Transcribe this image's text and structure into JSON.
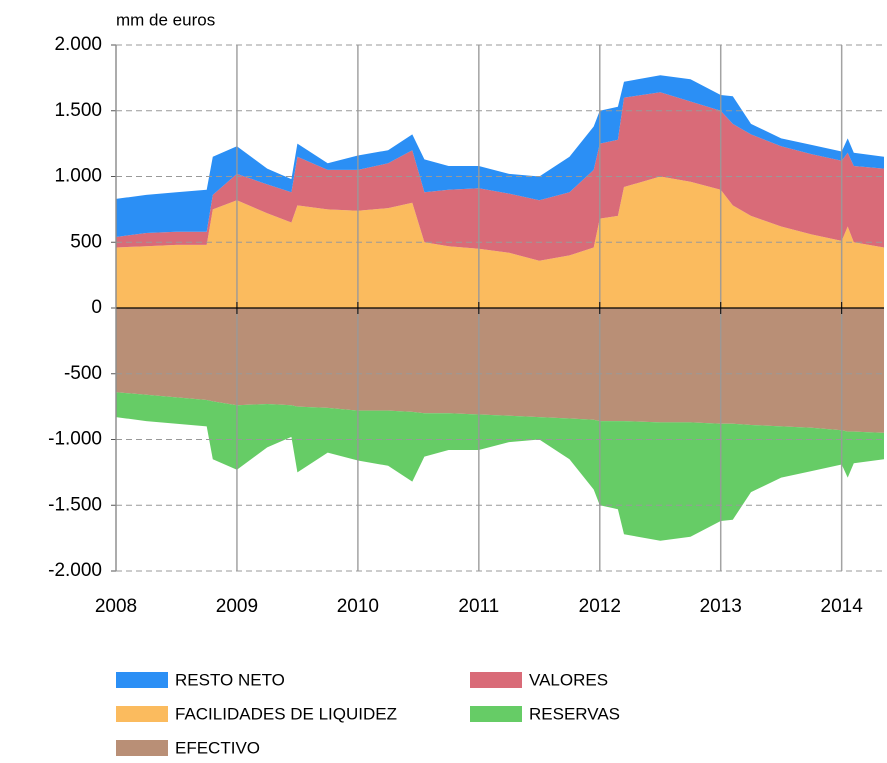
{
  "chart_data": {
    "type": "stacked_area",
    "y_label": "mm de euros",
    "x": [
      2008.0,
      2008.25,
      2008.5,
      2008.75,
      2008.8,
      2009.0,
      2009.25,
      2009.45,
      2009.5,
      2009.75,
      2010.0,
      2010.25,
      2010.45,
      2010.55,
      2010.75,
      2011.0,
      2011.25,
      2011.5,
      2011.75,
      2011.95,
      2012.0,
      2012.15,
      2012.2,
      2012.5,
      2012.75,
      2013.0,
      2013.1,
      2013.25,
      2013.5,
      2013.75,
      2014.0,
      2014.05,
      2014.1,
      2014.35
    ],
    "series": [
      {
        "name": "FACILIDADES DE LIQUIDEZ",
        "color": "#fbbb5e",
        "values": [
          460,
          470,
          480,
          480,
          750,
          820,
          720,
          650,
          780,
          750,
          740,
          760,
          800,
          500,
          470,
          450,
          420,
          360,
          400,
          460,
          680,
          700,
          920,
          1000,
          960,
          900,
          780,
          700,
          620,
          560,
          510,
          620,
          500,
          460
        ]
      },
      {
        "name": "VALORES",
        "color": "#d96b78",
        "values": [
          80,
          100,
          100,
          100,
          110,
          200,
          220,
          230,
          370,
          300,
          310,
          340,
          400,
          380,
          430,
          460,
          450,
          460,
          480,
          590,
          570,
          580,
          680,
          640,
          610,
          600,
          620,
          620,
          610,
          610,
          610,
          560,
          580,
          600
        ]
      },
      {
        "name": "RESTO NETO",
        "color": "#2b8ff5",
        "values": [
          290,
          290,
          300,
          320,
          290,
          210,
          120,
          100,
          100,
          50,
          110,
          100,
          120,
          250,
          180,
          170,
          150,
          180,
          270,
          330,
          250,
          250,
          120,
          130,
          170,
          120,
          210,
          80,
          60,
          70,
          70,
          110,
          100,
          90
        ]
      },
      {
        "name": "EFECTIVO",
        "color": "#b98f76",
        "values": [
          -640,
          -660,
          -680,
          -700,
          -710,
          -740,
          -730,
          -740,
          -750,
          -760,
          -780,
          -780,
          -790,
          -800,
          -800,
          -810,
          -820,
          -830,
          -840,
          -850,
          -860,
          -860,
          -860,
          -870,
          -870,
          -880,
          -880,
          -890,
          -900,
          -910,
          -930,
          -940,
          -940,
          -950
        ]
      },
      {
        "name": "RESERVAS",
        "color": "#66cc66",
        "values": [
          -190,
          -200,
          -200,
          -200,
          -440,
          -490,
          -330,
          -240,
          -500,
          -340,
          -380,
          -420,
          -530,
          -330,
          -280,
          -270,
          -200,
          -170,
          -310,
          -530,
          -640,
          -670,
          -860,
          -900,
          -870,
          -740,
          -730,
          -510,
          -390,
          -330,
          -260,
          -350,
          -240,
          -200
        ]
      }
    ],
    "xlim": [
      2008,
      2014.35
    ],
    "xticks": [
      2008,
      2009,
      2010,
      2011,
      2012,
      2013,
      2014
    ],
    "ylim": [
      -2000,
      2000
    ],
    "yticks": [
      {
        "value": -2000,
        "label": "-2.000"
      },
      {
        "value": -1500,
        "label": "-1.500"
      },
      {
        "value": -1000,
        "label": "-1.000"
      },
      -500,
      0,
      500,
      {
        "value": 1000,
        "label": "1.000"
      },
      {
        "value": 1500,
        "label": "1.500"
      },
      {
        "value": 2000,
        "label": "2.000"
      }
    ],
    "grid": true
  }
}
